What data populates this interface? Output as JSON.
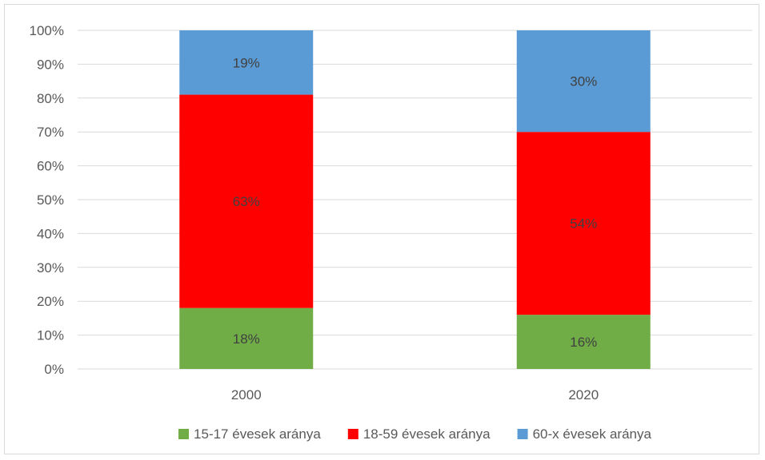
{
  "chart_data": {
    "type": "bar",
    "stacked": true,
    "percent": true,
    "categories": [
      "2000",
      "2020"
    ],
    "series": [
      {
        "name": "15-17 évesek aránya",
        "values": [
          18,
          16
        ],
        "labels": [
          "18%",
          "16%"
        ],
        "color": "#70ad47"
      },
      {
        "name": "18-59 évesek aránya",
        "values": [
          63,
          54
        ],
        "labels": [
          "63%",
          "54%"
        ],
        "color": "#ff0000"
      },
      {
        "name": "60-x évesek aránya",
        "values": [
          19,
          30
        ],
        "labels": [
          "19%",
          "30%"
        ],
        "color": "#5b9bd5"
      }
    ],
    "ylim": [
      0,
      100
    ],
    "yticks": [
      "0%",
      "10%",
      "20%",
      "30%",
      "40%",
      "50%",
      "60%",
      "70%",
      "80%",
      "90%",
      "100%"
    ],
    "grid": true,
    "legend_position": "bottom",
    "title": "",
    "xlabel": "",
    "ylabel": ""
  }
}
